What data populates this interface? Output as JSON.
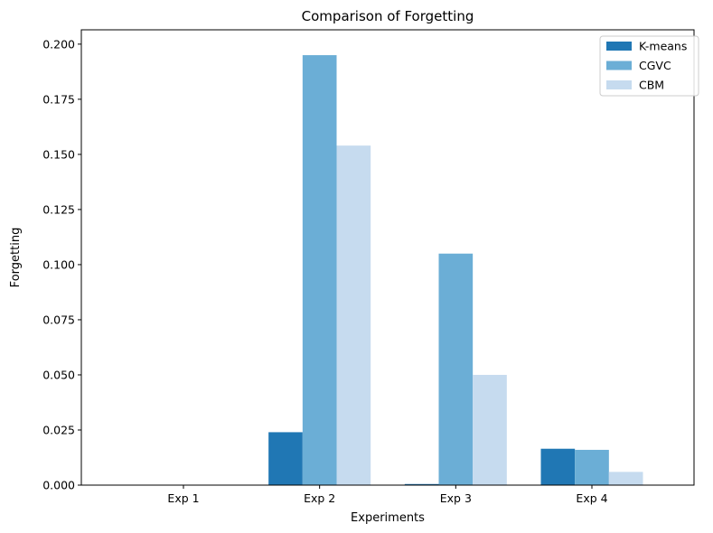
{
  "chart_data": {
    "type": "bar",
    "title": "Comparison of Forgetting",
    "xlabel": "Experiments",
    "ylabel": "Forgetting",
    "categories": [
      "Exp 1",
      "Exp 2",
      "Exp 3",
      "Exp 4"
    ],
    "series": [
      {
        "name": "K-means",
        "color": "#2077b4",
        "values": [
          0.0,
          0.024,
          0.0005,
          0.0165
        ]
      },
      {
        "name": "CGVC",
        "color": "#6baed6",
        "values": [
          0.0,
          0.195,
          0.105,
          0.016
        ]
      },
      {
        "name": "CBM",
        "color": "#c6dbef",
        "values": [
          0.0,
          0.154,
          0.05,
          0.006
        ]
      }
    ],
    "ylim": [
      0,
      0.2065
    ],
    "yticks": [
      0.0,
      0.025,
      0.05,
      0.075,
      0.1,
      0.125,
      0.15,
      0.175,
      0.2
    ],
    "ytick_labels": [
      "0.000",
      "0.025",
      "0.050",
      "0.075",
      "0.100",
      "0.125",
      "0.150",
      "0.175",
      "0.200"
    ],
    "grid": false,
    "legend": "top-right"
  }
}
